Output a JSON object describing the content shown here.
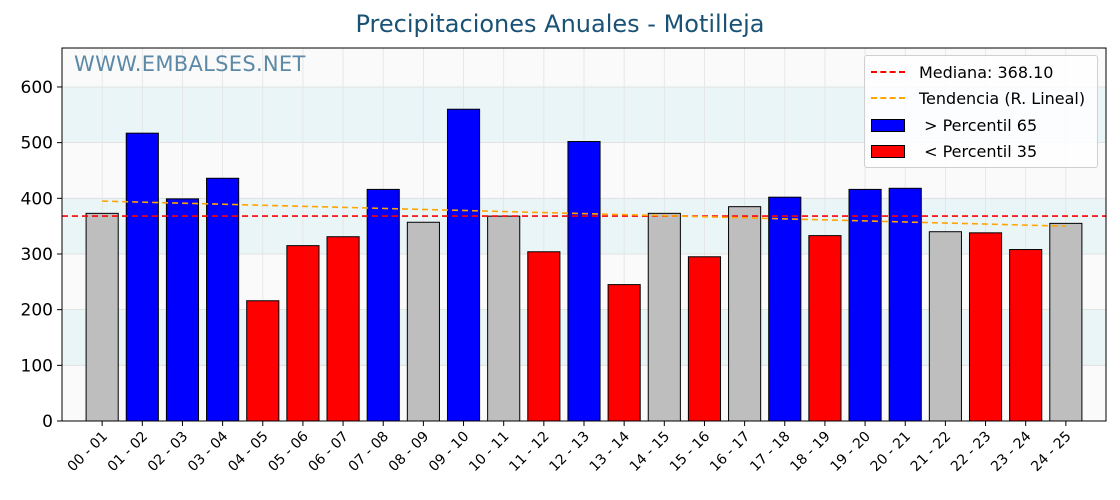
{
  "title": "Precipitaciones Anuales - Motilleja",
  "watermark": "WWW.EMBALSES.NET",
  "legend": {
    "median_label": "Mediana: 368.10",
    "trend_label": "Tendencia (R. Lineal)",
    "p65_label": " > Percentil 65",
    "p35_label": " < Percentil 35"
  },
  "colors": {
    "above_p65": "#0000ff",
    "below_p35": "#ff0000",
    "normal": "#bebebe",
    "median": "#ff0000",
    "trend": "#ffa500",
    "title": "#1a5276",
    "band": "#eaf5f8"
  },
  "chart_data": {
    "type": "bar",
    "title": "Precipitaciones Anuales - Motilleja",
    "categories": [
      "00 - 01",
      "01 - 02",
      "02 - 03",
      "03 - 04",
      "04 - 05",
      "05 - 06",
      "06 - 07",
      "07 - 08",
      "08 - 09",
      "09 - 10",
      "10 - 11",
      "11 - 12",
      "12 - 13",
      "13 - 14",
      "14 - 15",
      "15 - 16",
      "16 - 17",
      "17 - 18",
      "18 - 19",
      "19 - 20",
      "20 - 21",
      "21 - 22",
      "22 - 23",
      "23 - 24",
      "24 - 25"
    ],
    "values": [
      373,
      517,
      399,
      436,
      216,
      315,
      331,
      416,
      357,
      560,
      368,
      304,
      502,
      245,
      373,
      295,
      385,
      402,
      333,
      416,
      418,
      340,
      338,
      308,
      355
    ],
    "classes": [
      "normal",
      "above_p65",
      "above_p65",
      "above_p65",
      "below_p35",
      "below_p35",
      "below_p35",
      "above_p65",
      "normal",
      "above_p65",
      "normal",
      "below_p35",
      "above_p65",
      "below_p35",
      "normal",
      "below_p35",
      "normal",
      "above_p65",
      "below_p35",
      "above_p65",
      "above_p65",
      "normal",
      "below_p35",
      "below_p35",
      "normal"
    ],
    "median": 368.1,
    "trend": {
      "start": 395,
      "end": 350
    },
    "ylim": [
      0,
      670
    ],
    "yticks": [
      0,
      100,
      200,
      300,
      400,
      500,
      600
    ],
    "bands": [
      [
        100,
        200
      ],
      [
        300,
        400
      ],
      [
        500,
        600
      ]
    ],
    "grid": true,
    "legend_position": "top-right"
  }
}
